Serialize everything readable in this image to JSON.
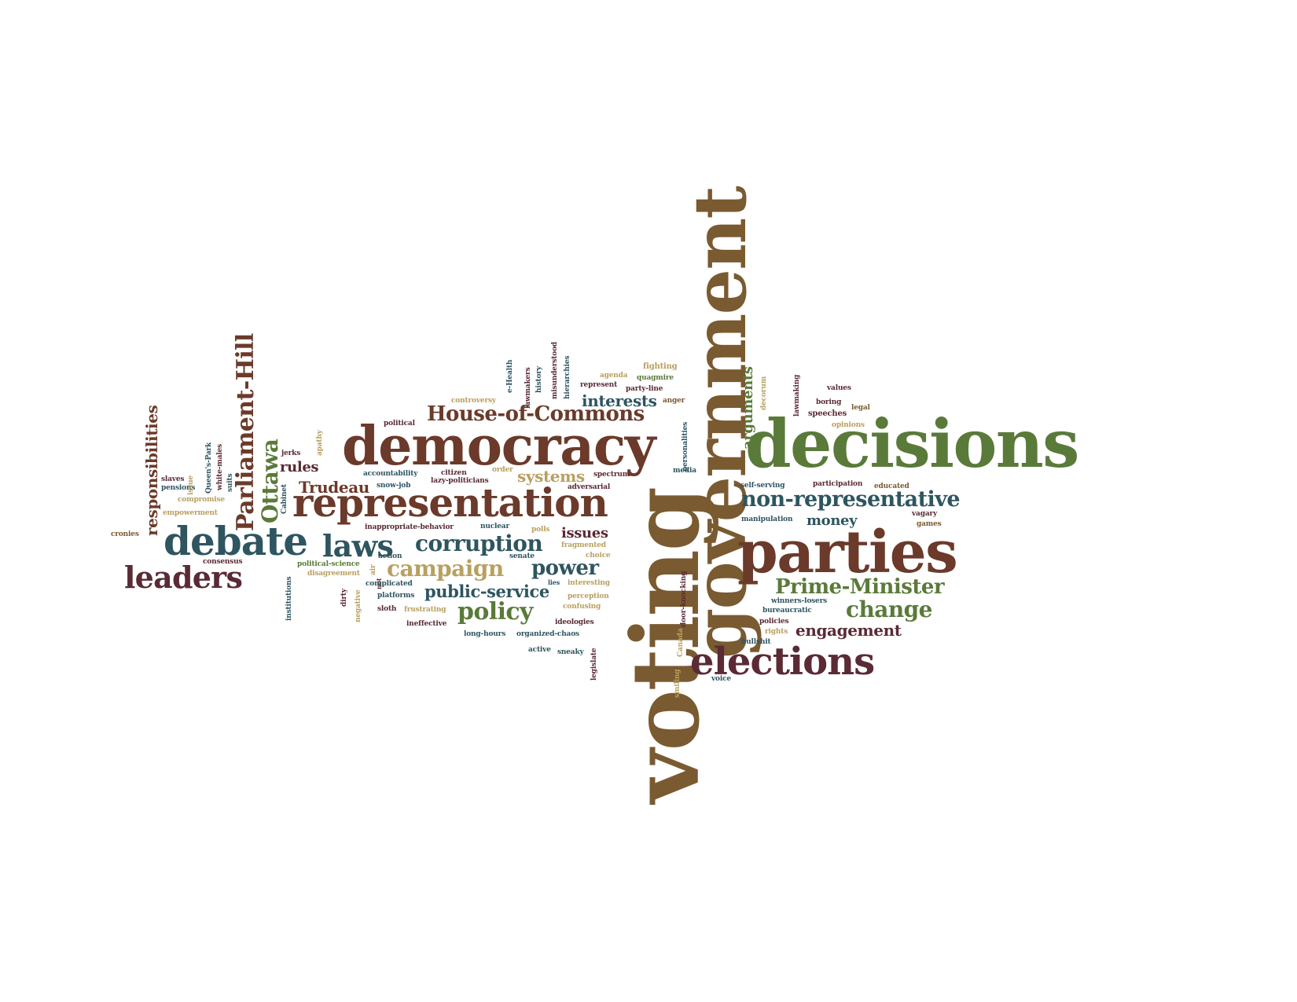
{
  "colors": {
    "reddish_brown": "#6b3a2a",
    "dark_teal": "#2e5560",
    "olive_green": "#5a7a3a",
    "khaki": "#b8a060",
    "brown": "#7a5a30",
    "maroon": "#5a2a35",
    "background": "#ffffff"
  },
  "words": {
    "voting": "voting",
    "government": "government",
    "decisions": "decisions",
    "democracy": "democracy",
    "parties": "parties",
    "representation": "representation",
    "elections": "elections",
    "debate": "debate",
    "laws": "laws",
    "leaders": "leaders",
    "house_of_commons": "House-of-Commons",
    "non_representative": "non-representative",
    "parliament_hill": "Parliament-Hill",
    "ottawa": "Ottawa",
    "responsibilities": "responsibilities",
    "corruption": "corruption",
    "campaign": "campaign",
    "power": "power",
    "policy": "policy",
    "public_service": "public-service",
    "prime_minister": "Prime-Minister",
    "change": "change",
    "engagement": "engagement",
    "arguments": "arguments",
    "interests": "interests",
    "systems": "systems",
    "trudeau": "Trudeau",
    "rules": "rules",
    "issues": "issues",
    "money": "money",
    "political": "political",
    "controversy": "controversy",
    "agenda": "agenda",
    "fighting": "fighting",
    "quagmire": "quagmire",
    "represent": "represent",
    "party_line": "party-line",
    "anger": "anger",
    "values": "values",
    "boring": "boring",
    "legal": "legal",
    "speeches": "speeches",
    "opinions": "opinions",
    "self_serving": "self-serving",
    "participation": "participation",
    "educated": "educated",
    "manipulation": "manipulation",
    "vagary": "vagary",
    "games": "games",
    "accountability": "accountability",
    "citizen": "citizen",
    "order": "order",
    "spectrum": "spectrum",
    "lazy_politicians": "lazy-politicians",
    "snow_job": "snow-job",
    "adversarial": "adversarial",
    "media": "media",
    "jerks": "jerks",
    "inappropriate_behavior": "inappropriate-behavior",
    "nuclear": "nuclear",
    "polls": "polls",
    "fragmented": "fragmented",
    "choice": "choice",
    "action": "action",
    "senate": "senate",
    "political_science": "political-science",
    "disagreement": "disagreement",
    "complicated": "complicated",
    "platforms": "platforms",
    "sloth": "sloth",
    "frustrating": "frustrating",
    "ineffective": "ineffective",
    "long_hours": "long-hours",
    "organized_chaos": "organized-chaos",
    "ideologies": "ideologies",
    "active": "active",
    "sneaky": "sneaky",
    "interesting": "interesting",
    "perception": "perception",
    "confusing": "confusing",
    "lies": "lies",
    "winners_losers": "winners-losers",
    "bureaucratic": "bureaucratic",
    "policies": "policies",
    "rights": "rights",
    "bullshit": "bullshit",
    "voice": "voice",
    "consensus": "consensus",
    "empowerment": "empowerment",
    "compromise": "compromise",
    "pensions": "pensions",
    "slaves": "slaves",
    "cronies": "cronies",
    "issue": "issue",
    "queens_park": "Queen's-Park",
    "white_males": "white-males",
    "suits": "suits",
    "cabinet": "Cabinet",
    "institutions": "institutions",
    "dirty": "dirty",
    "negative": "negative",
    "air": "air",
    "apathy": "apathy",
    "e_health": "e-Health",
    "lawmakers": "lawmakers",
    "history": "history",
    "misunderstood": "misunderstood",
    "hierarchies": "hierarchies",
    "personalities": "personalities",
    "door_knocking": "door-knocking",
    "smiling": "smiling",
    "canada": "Canada",
    "legislate": "legislate",
    "decorum": "decorum",
    "lawmaking": "lawmaking",
    "not": "not"
  }
}
